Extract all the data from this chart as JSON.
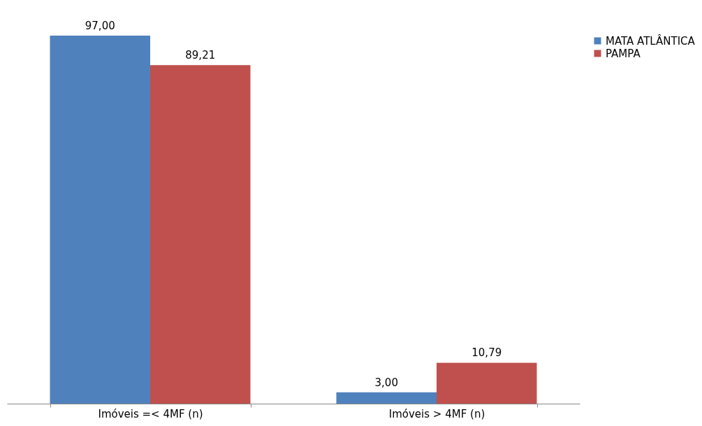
{
  "chart_data": {
    "type": "bar",
    "categories": [
      "Imóveis  =<  4MF (n)",
      "Imóveis > 4MF (n)"
    ],
    "series": [
      {
        "name": "MATA ATLÂNTICA",
        "color": "#4f81bd",
        "values": [
          97.0,
          3.0
        ],
        "value_labels": [
          "97,00",
          "3,00"
        ]
      },
      {
        "name": "PAMPA",
        "color": "#c0504d",
        "values": [
          89.21,
          10.79
        ],
        "value_labels": [
          "89,21",
          "10,79"
        ]
      }
    ],
    "legend": "right",
    "grid": false
  }
}
